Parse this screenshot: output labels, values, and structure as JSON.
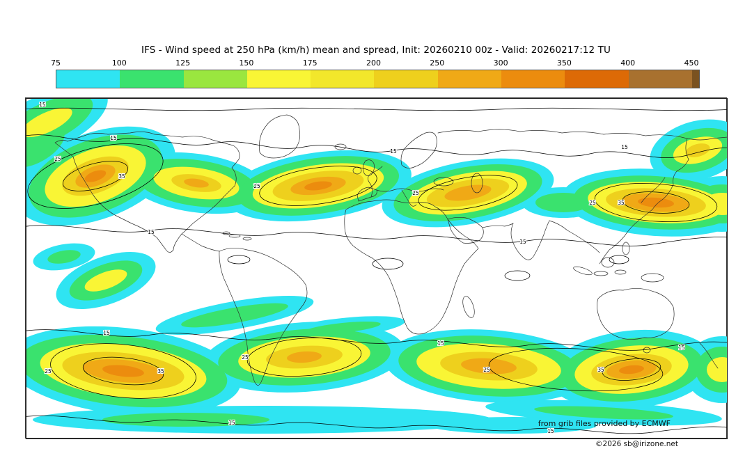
{
  "title": "IFS - Wind speed at 250 hPa (km/h) mean and spread, Init: 20260210 00z - Valid: 20260217:12 TU",
  "colorbar": {
    "tick_labels": [
      "75",
      "100",
      "125",
      "150",
      "175",
      "200",
      "250",
      "300",
      "350",
      "400",
      "450"
    ],
    "colors": [
      "#2fe4f2",
      "#3ae26e",
      "#9ae63f",
      "#f9f535",
      "#f2e72b",
      "#eed01d",
      "#f0a916",
      "#ec8c0e",
      "#dd6a06",
      "#a8712f",
      "#7a5220"
    ]
  },
  "map": {
    "labels": {
      "spread15": "15",
      "spread25": "25",
      "spread35": "35"
    }
  },
  "credits": {
    "provider": "from grib files provided by ECMWF",
    "copyright": "©2026 sb@irizone.net"
  },
  "chart_data": {
    "type": "heatmap",
    "title": "IFS - Wind speed at 250 hPa (km/h) mean and spread",
    "variable": "Wind speed at 250 hPa",
    "units": "km/h",
    "init_time": "20260210 00z",
    "valid_time": "20260217:12 TU",
    "projection": "global equirectangular world map",
    "legend_position": "top",
    "fill_levels_kmh": [
      75,
      100,
      125,
      150,
      175,
      200,
      250,
      300,
      350,
      400,
      450
    ],
    "palette": [
      "#2fe4f2",
      "#3ae26e",
      "#9ae63f",
      "#f9f535",
      "#f2e72b",
      "#eed01d",
      "#f0a916",
      "#ec8c0e",
      "#dd6a06",
      "#a8712f",
      "#7a5220"
    ],
    "spread_contour_levels": [
      15,
      25,
      35
    ],
    "depicted_features": [
      "Northern-hemisphere jet streaks over the North Pacific, North America, North Atlantic, Middle East and East Asia with cores reaching the 250-350 km/h bands",
      "Nearly continuous Southern-hemisphere jet band (40-60S) with several 250-350 km/h cores",
      "Black line contours show ensemble spread labeled 15, 25 and 35 km/h",
      "Tropics mostly below 75 km/h (white)"
    ]
  }
}
